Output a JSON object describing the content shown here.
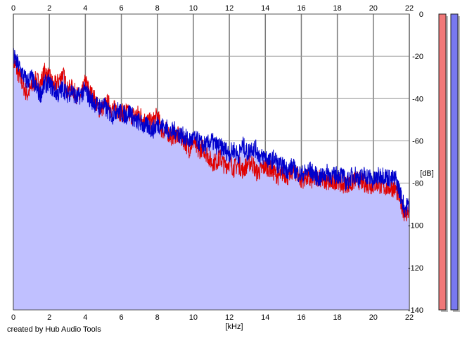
{
  "credit": "created by Hub Audio Tools",
  "chart_data": {
    "type": "line",
    "title": "",
    "xlabel": "[kHz]",
    "ylabel": "[dB]",
    "xlim": [
      0,
      22
    ],
    "ylim": [
      -140,
      0
    ],
    "x_ticks": [
      0,
      2,
      4,
      6,
      8,
      10,
      12,
      14,
      16,
      18,
      20,
      22
    ],
    "y_ticks": [
      0,
      -20,
      -40,
      -60,
      -80,
      -100,
      -120,
      -140
    ],
    "x_axis_top": true,
    "y_axis_side": "right",
    "grid": true,
    "filled_area_color": "#c0c0ff",
    "background": "#ffffff",
    "series": [
      {
        "color": "#e00000",
        "x": [
          0,
          0.25,
          0.5,
          0.75,
          1,
          1.25,
          1.5,
          1.75,
          2,
          2.25,
          2.5,
          2.75,
          3,
          3.25,
          3.5,
          3.75,
          4,
          4.25,
          4.5,
          4.75,
          5,
          5.25,
          5.5,
          5.75,
          6,
          6.25,
          6.5,
          6.75,
          7,
          7.25,
          7.5,
          7.75,
          8,
          8.25,
          8.5,
          8.75,
          9,
          9.25,
          9.5,
          9.75,
          10,
          10.25,
          10.5,
          10.75,
          11,
          11.25,
          11.5,
          11.75,
          12,
          12.25,
          12.5,
          12.75,
          13,
          13.25,
          13.5,
          13.75,
          14,
          14.25,
          14.5,
          14.75,
          15,
          15.25,
          15.5,
          15.75,
          16,
          16.25,
          16.5,
          16.75,
          17,
          17.25,
          17.5,
          17.75,
          18,
          18.25,
          18.5,
          18.75,
          19,
          19.25,
          19.5,
          19.75,
          20,
          20.25,
          20.5,
          20.75,
          21,
          21.25,
          21.5,
          21.75,
          22
        ],
        "values": [
          -22,
          -28,
          -33,
          -38,
          -35,
          -31,
          -33,
          -27,
          -30,
          -34,
          -32,
          -28,
          -36,
          -35,
          -38,
          -40,
          -32,
          -37,
          -40,
          -45,
          -44,
          -42,
          -45,
          -45,
          -47,
          -46,
          -48,
          -48,
          -47,
          -50,
          -51,
          -51,
          -48,
          -55,
          -55,
          -58,
          -57,
          -58,
          -60,
          -64,
          -60,
          -65,
          -63,
          -66,
          -70,
          -70,
          -68,
          -72,
          -70,
          -73,
          -71,
          -74,
          -71,
          -70,
          -75,
          -74,
          -72,
          -73,
          -75,
          -77,
          -75,
          -77,
          -74,
          -75,
          -79,
          -77,
          -79,
          -78,
          -77,
          -79,
          -80,
          -80,
          -78,
          -81,
          -80,
          -81,
          -78,
          -79,
          -80,
          -81,
          -81,
          -80,
          -82,
          -82,
          -82,
          -83,
          -88,
          -95,
          -93
        ]
      },
      {
        "color": "#0000cc",
        "x": [
          0,
          0.25,
          0.5,
          0.75,
          1,
          1.25,
          1.5,
          1.75,
          2,
          2.25,
          2.5,
          2.75,
          3,
          3.25,
          3.5,
          3.75,
          4,
          4.25,
          4.5,
          4.75,
          5,
          5.25,
          5.5,
          5.75,
          6,
          6.25,
          6.5,
          6.75,
          7,
          7.25,
          7.5,
          7.75,
          8,
          8.25,
          8.5,
          8.75,
          9,
          9.25,
          9.5,
          9.75,
          10,
          10.25,
          10.5,
          10.75,
          11,
          11.25,
          11.5,
          11.75,
          12,
          12.25,
          12.5,
          12.75,
          13,
          13.25,
          13.5,
          13.75,
          14,
          14.25,
          14.5,
          14.75,
          15,
          15.25,
          15.5,
          15.75,
          16,
          16.25,
          16.5,
          16.75,
          17,
          17.25,
          17.5,
          17.75,
          18,
          18.25,
          18.5,
          18.75,
          19,
          19.25,
          19.5,
          19.75,
          20,
          20.25,
          20.5,
          20.75,
          21,
          21.25,
          21.5,
          21.75,
          22
        ],
        "values": [
          -20,
          -24,
          -28,
          -32,
          -30,
          -35,
          -38,
          -33,
          -33,
          -36,
          -38,
          -35,
          -38,
          -36,
          -40,
          -38,
          -36,
          -40,
          -42,
          -44,
          -43,
          -46,
          -48,
          -45,
          -47,
          -48,
          -46,
          -51,
          -51,
          -53,
          -53,
          -55,
          -52,
          -53,
          -54,
          -56,
          -55,
          -57,
          -58,
          -60,
          -59,
          -60,
          -62,
          -62,
          -60,
          -62,
          -63,
          -64,
          -66,
          -64,
          -67,
          -62,
          -66,
          -63,
          -64,
          -68,
          -67,
          -70,
          -68,
          -72,
          -72,
          -74,
          -72,
          -75,
          -76,
          -75,
          -74,
          -76,
          -78,
          -76,
          -75,
          -77,
          -76,
          -76,
          -80,
          -77,
          -76,
          -78,
          -76,
          -77,
          -79,
          -77,
          -76,
          -77,
          -78,
          -78,
          -85,
          -92,
          -90
        ]
      }
    ],
    "level_meters": [
      {
        "color": "#f07878"
      },
      {
        "color": "#7878f0"
      }
    ]
  }
}
